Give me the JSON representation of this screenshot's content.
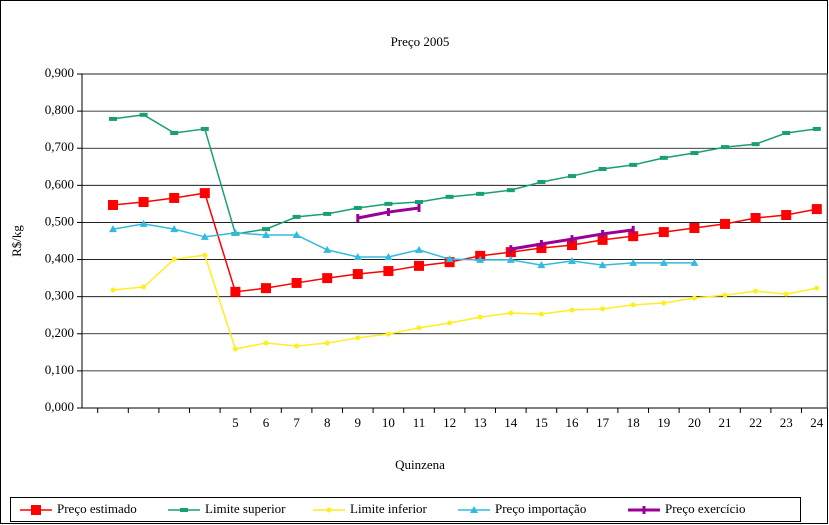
{
  "chart_data": {
    "type": "line",
    "title": "Preço 2005",
    "x_label": "Quinzena",
    "y_label": "R$/kg",
    "categories": [
      null,
      null,
      null,
      null,
      "5",
      "6",
      "7",
      "8",
      "9",
      "10",
      "11",
      "12",
      "13",
      "14",
      "15",
      "16",
      "17",
      "18",
      "19",
      "20",
      "21",
      "22",
      "23",
      "24"
    ],
    "ylim": [
      0,
      0.9
    ],
    "yticks": [
      {
        "value": 0,
        "label": "0,000"
      },
      {
        "value": 0.1,
        "label": "0,100"
      },
      {
        "value": 0.2,
        "label": "0,200"
      },
      {
        "value": 0.3,
        "label": "0,300"
      },
      {
        "value": 0.4,
        "label": "0,400"
      },
      {
        "value": 0.5,
        "label": "0,500"
      },
      {
        "value": 0.6,
        "label": "0,600"
      },
      {
        "value": 0.7,
        "label": "0,700"
      },
      {
        "value": 0.8,
        "label": "0,800"
      },
      {
        "value": 0.9,
        "label": "0,900"
      }
    ],
    "grid": true,
    "legend": "bottom",
    "series": [
      {
        "name": "Preço estimado",
        "color": "#ff0000",
        "marker": "square",
        "values": [
          0.547,
          0.555,
          0.566,
          0.579,
          0.313,
          0.323,
          0.337,
          0.35,
          0.361,
          0.369,
          0.383,
          0.393,
          0.41,
          0.42,
          0.431,
          0.439,
          0.453,
          0.463,
          0.474,
          0.485,
          0.496,
          0.512,
          0.52,
          0.536
        ]
      },
      {
        "name": "Limite superior",
        "color": "#1a9e77",
        "marker": "dash",
        "values": [
          0.779,
          0.79,
          0.741,
          0.752,
          0.469,
          0.482,
          0.515,
          0.523,
          0.539,
          0.55,
          0.555,
          0.569,
          0.577,
          0.587,
          0.609,
          0.625,
          0.644,
          0.655,
          0.674,
          0.687,
          0.703,
          0.711,
          0.741,
          0.752
        ]
      },
      {
        "name": "Limite inferior",
        "color": "#ffee22",
        "marker": "circle",
        "values": [
          0.318,
          0.326,
          0.401,
          0.412,
          0.159,
          0.175,
          0.167,
          0.175,
          0.189,
          0.199,
          0.216,
          0.229,
          0.245,
          0.256,
          0.253,
          0.264,
          0.267,
          0.278,
          0.283,
          0.296,
          0.304,
          0.315,
          0.307,
          0.323
        ]
      },
      {
        "name": "Preço importação",
        "color": "#33bbdd",
        "marker": "triangle",
        "values": [
          0.482,
          0.496,
          0.482,
          0.461,
          0.472,
          0.466,
          0.466,
          0.426,
          0.407,
          0.407,
          0.426,
          0.401,
          0.399,
          0.399,
          0.385,
          0.396,
          0.385,
          0.391,
          0.391,
          0.391,
          null,
          null,
          null,
          null
        ]
      },
      {
        "name": "Preço exercício",
        "color": "#990099",
        "marker": "bar",
        "values": [
          null,
          null,
          null,
          null,
          null,
          null,
          null,
          null,
          0.512,
          0.528,
          0.539,
          null,
          null,
          0.428,
          0.442,
          0.455,
          0.469,
          0.48,
          null,
          null,
          null,
          null,
          null,
          null
        ]
      }
    ]
  }
}
